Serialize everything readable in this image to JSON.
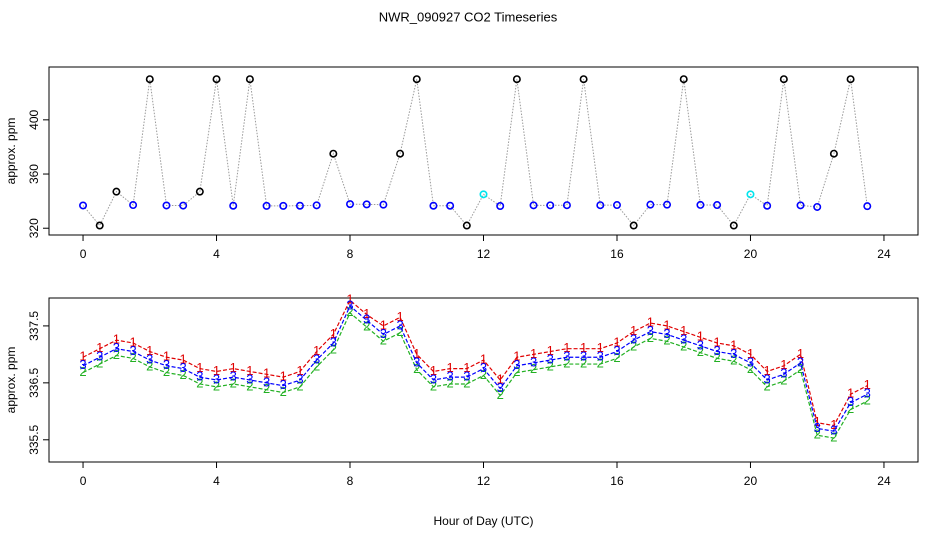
{
  "chart_data": [
    {
      "type": "scatter",
      "title": "NWR_090927  CO2 Timeseries",
      "ylabel": "approx. ppm",
      "lines": true,
      "line_color": "#9a9a9a",
      "x": [
        0,
        0.5,
        1,
        1.5,
        2,
        2.5,
        3,
        3.5,
        4,
        4.5,
        5,
        5.5,
        6,
        6.5,
        7,
        7.5,
        8,
        8.5,
        9,
        9.5,
        10,
        10.5,
        11,
        11.5,
        12,
        12.5,
        13,
        13.5,
        14,
        14.5,
        15,
        15.5,
        16,
        16.5,
        17,
        17.5,
        18,
        18.5,
        19,
        19.5,
        20,
        20.5,
        21,
        21.5,
        22,
        22.5,
        23,
        23.5
      ],
      "series": [
        {
          "values": [
            336.8,
            322,
            347,
            337.1,
            430,
            336.8,
            336.7,
            347,
            430,
            336.6,
            430,
            336.5,
            336.5,
            336.6,
            336.9,
            375,
            337.8,
            337.6,
            337.4,
            375,
            430,
            336.6,
            336.6,
            322,
            345,
            336.4,
            430,
            336.9,
            336.9,
            337,
            430,
            337,
            337.1,
            322,
            337.4,
            337.4,
            430,
            337.2,
            337.1,
            322,
            345,
            336.6,
            430,
            336.9,
            335.7,
            375,
            430,
            336.3
          ],
          "colors": [
            "#0000ff",
            "#000000",
            "#000000",
            "#0000ff",
            "#000000",
            "#0000ff",
            "#0000ff",
            "#000000",
            "#000000",
            "#0000ff",
            "#000000",
            "#0000ff",
            "#0000ff",
            "#0000ff",
            "#0000ff",
            "#000000",
            "#0000ff",
            "#0000ff",
            "#0000ff",
            "#000000",
            "#000000",
            "#0000ff",
            "#0000ff",
            "#000000",
            "#00e5ee",
            "#0000ff",
            "#000000",
            "#0000ff",
            "#0000ff",
            "#0000ff",
            "#000000",
            "#0000ff",
            "#0000ff",
            "#000000",
            "#0000ff",
            "#0000ff",
            "#000000",
            "#0000ff",
            "#0000ff",
            "#000000",
            "#00e5ee",
            "#0000ff",
            "#000000",
            "#0000ff",
            "#0000ff",
            "#000000",
            "#000000",
            "#0000ff"
          ]
        }
      ],
      "xlim": [
        -1.02,
        25.02
      ],
      "ylim": [
        315,
        439
      ],
      "xticks": [
        0,
        4,
        8,
        12,
        16,
        20,
        24
      ],
      "yticks": [
        320,
        360,
        400
      ]
    },
    {
      "type": "scatter",
      "ylabel": "approx. ppm",
      "xlabel": "Hour of Day (UTC)",
      "lines": true,
      "x": [
        0,
        0.5,
        1,
        1.5,
        2,
        2.5,
        3,
        3.5,
        4,
        4.5,
        5,
        5.5,
        6,
        6.5,
        7,
        7.5,
        8,
        8.5,
        9,
        9.5,
        10,
        10.5,
        11,
        11.5,
        12,
        12.5,
        13,
        13.5,
        14,
        14.5,
        15,
        15.5,
        16,
        16.5,
        17,
        17.5,
        18,
        18.5,
        19,
        19.5,
        20,
        20.5,
        21,
        21.5,
        22,
        22.5,
        23,
        23.5
      ],
      "series": [
        {
          "marker": "1",
          "color": "#e00000",
          "values": [
            336.95,
            337.1,
            337.25,
            337.2,
            337.05,
            336.95,
            336.9,
            336.75,
            336.7,
            336.75,
            336.7,
            336.65,
            336.6,
            336.7,
            337.05,
            337.35,
            337.95,
            337.7,
            337.5,
            337.65,
            337.0,
            336.7,
            336.75,
            336.75,
            336.9,
            336.55,
            336.95,
            337.0,
            337.05,
            337.1,
            337.1,
            337.1,
            337.2,
            337.4,
            337.55,
            337.5,
            337.4,
            337.3,
            337.2,
            337.15,
            337.0,
            336.7,
            336.8,
            337.0,
            335.8,
            335.75,
            336.3,
            336.45
          ]
        },
        {
          "marker": "2",
          "color": "#22b022",
          "values": [
            336.68,
            336.83,
            336.98,
            336.93,
            336.78,
            336.68,
            336.63,
            336.48,
            336.43,
            336.48,
            336.43,
            336.38,
            336.33,
            336.43,
            336.78,
            337.08,
            337.73,
            337.48,
            337.23,
            337.38,
            336.73,
            336.43,
            336.48,
            336.48,
            336.63,
            336.28,
            336.68,
            336.73,
            336.78,
            336.83,
            336.83,
            336.83,
            336.93,
            337.13,
            337.28,
            337.23,
            337.13,
            337.03,
            336.93,
            336.88,
            336.73,
            336.43,
            336.53,
            336.73,
            335.58,
            335.53,
            336.03,
            336.18
          ]
        },
        {
          "marker": "3",
          "color": "#0000ff",
          "values": [
            336.8,
            336.95,
            337.1,
            337.05,
            336.9,
            336.8,
            336.75,
            336.6,
            336.55,
            336.6,
            336.55,
            336.5,
            336.45,
            336.55,
            336.9,
            337.2,
            337.85,
            337.6,
            337.35,
            337.5,
            336.85,
            336.55,
            336.6,
            336.6,
            336.75,
            336.4,
            336.8,
            336.85,
            336.9,
            336.95,
            336.95,
            336.95,
            337.05,
            337.25,
            337.4,
            337.35,
            337.25,
            337.15,
            337.05,
            337.0,
            336.85,
            336.55,
            336.65,
            336.85,
            335.7,
            335.65,
            336.15,
            336.3
          ]
        }
      ],
      "xlim": [
        -1.02,
        25.02
      ],
      "ylim": [
        335.11,
        337.99
      ],
      "xticks": [
        0,
        4,
        8,
        12,
        16,
        20,
        24
      ],
      "yticks": [
        335.5,
        336.5,
        337.5
      ]
    }
  ]
}
